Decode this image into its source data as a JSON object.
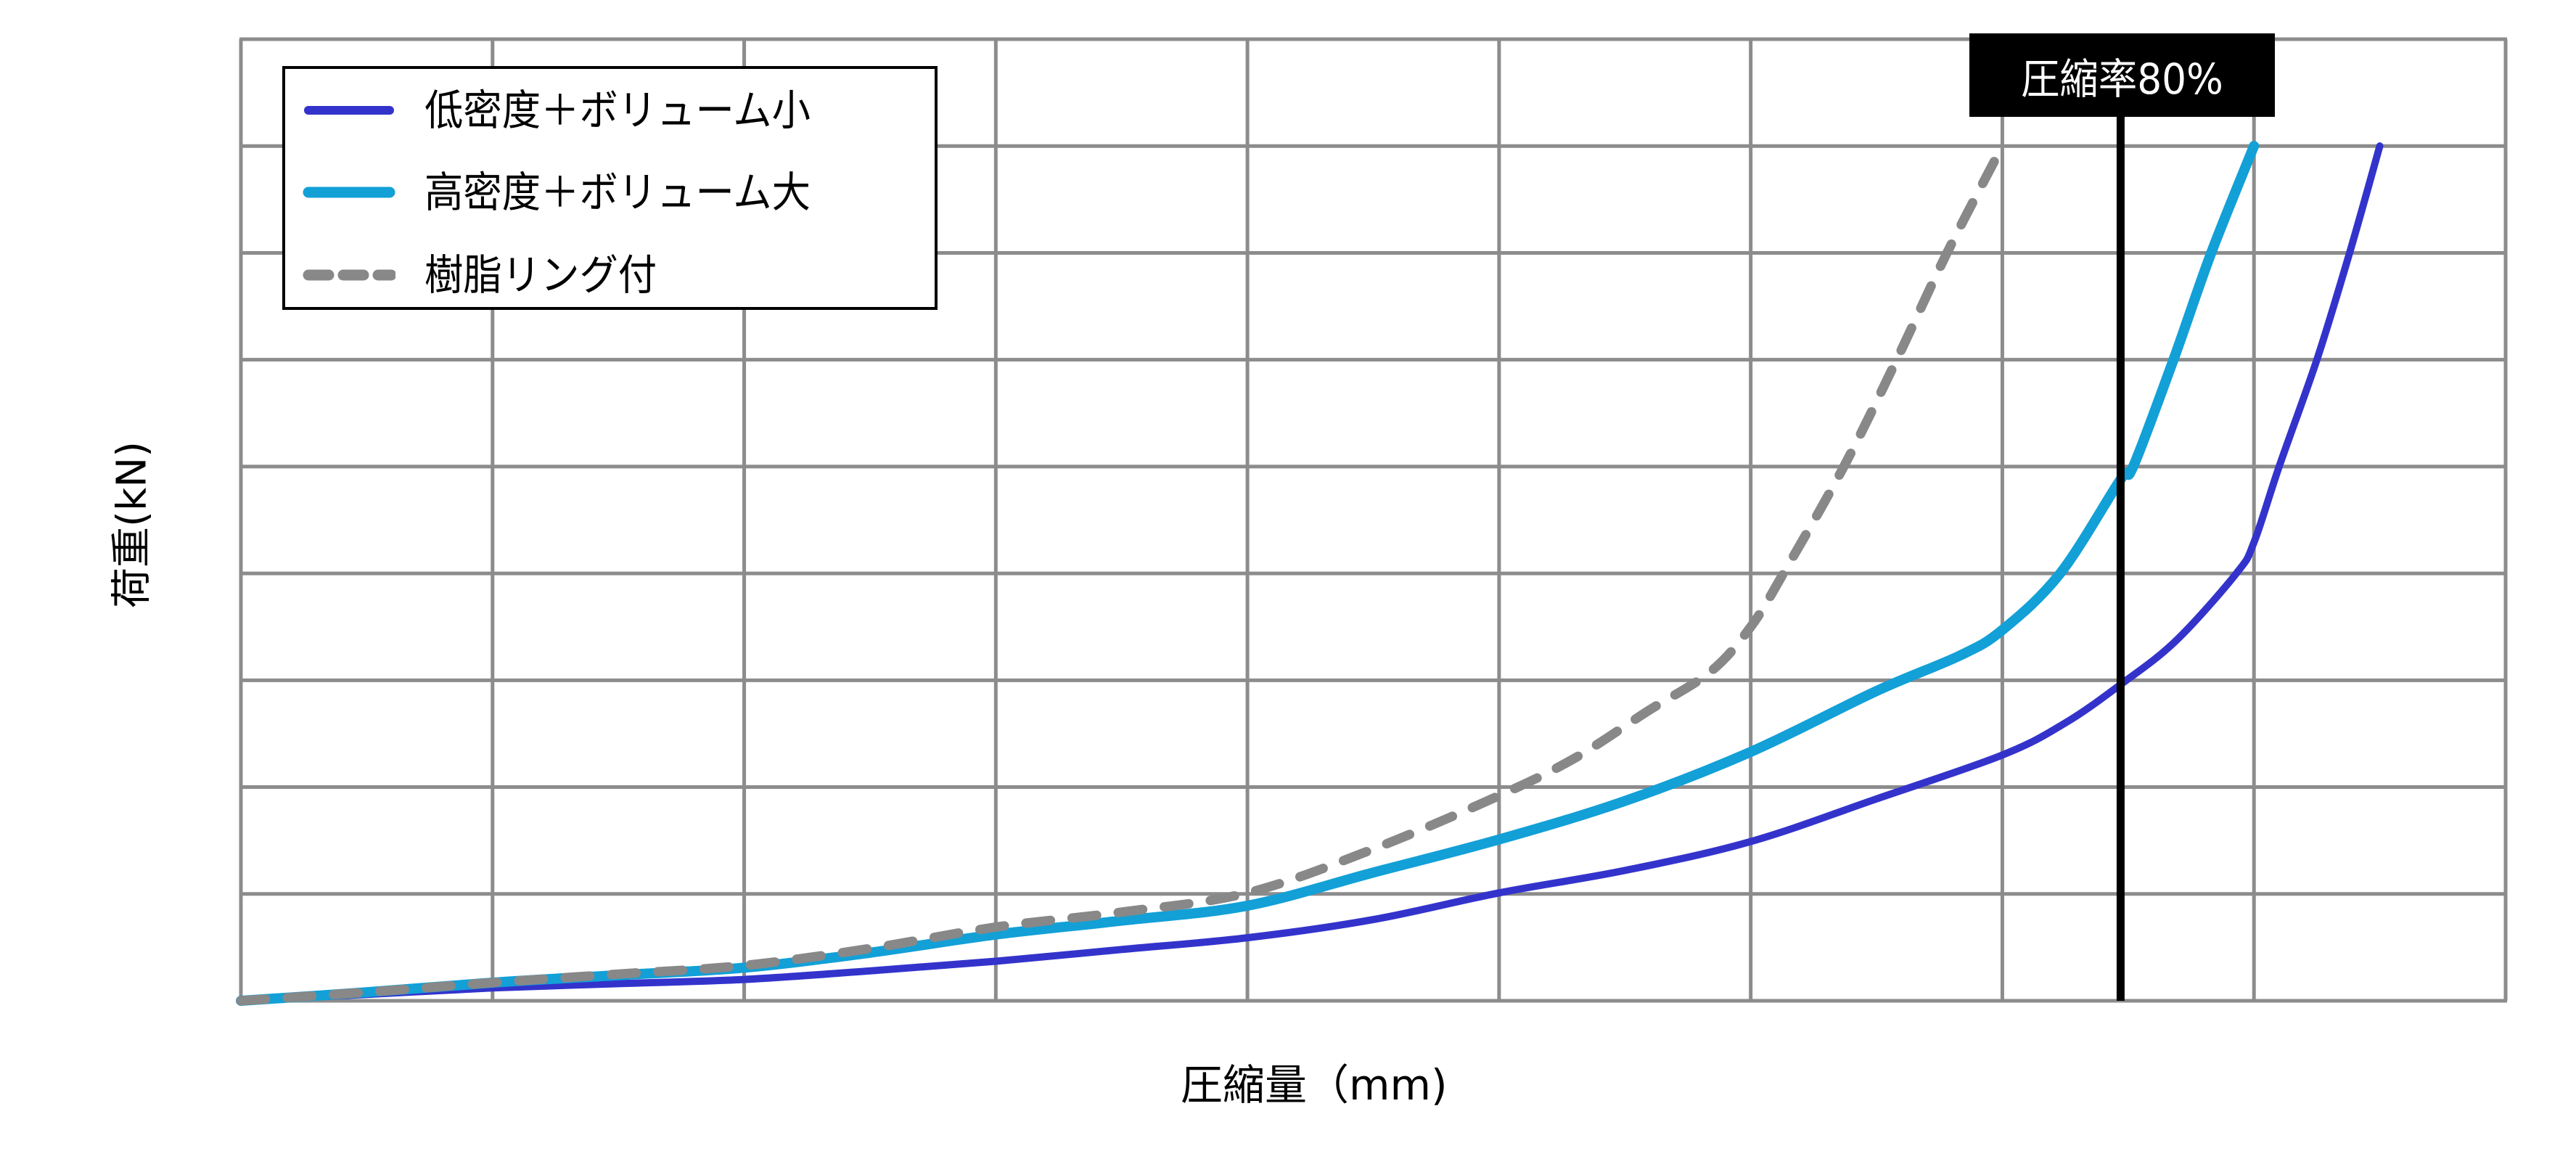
{
  "chart_data": {
    "type": "line",
    "title": "",
    "xlabel": "圧縮量（mm)",
    "ylabel": "荷重(kN)",
    "x_tick_labels": [],
    "y_tick_labels": [],
    "xlim": [
      0,
      9
    ],
    "ylim": [
      0,
      9
    ],
    "grid": true,
    "grid_divisions": {
      "x": 9,
      "y": 9
    },
    "legend_position": "upper left",
    "units_note": "Axes unlabeled; values expressed in grid units (x: columns 0-9, y: rows 0-9)",
    "series": [
      {
        "name": "低密度＋ボリューム小",
        "color": "#3333CC",
        "style": "solid",
        "points": [
          [
            0,
            0
          ],
          [
            0.5,
            0.06
          ],
          [
            1,
            0.12
          ],
          [
            1.5,
            0.16
          ],
          [
            2,
            0.2
          ],
          [
            2.5,
            0.28
          ],
          [
            3,
            0.37
          ],
          [
            3.5,
            0.48
          ],
          [
            4,
            0.59
          ],
          [
            4.5,
            0.76
          ],
          [
            5,
            1.01
          ],
          [
            5.5,
            1.22
          ],
          [
            6,
            1.49
          ],
          [
            6.5,
            1.89
          ],
          [
            7,
            2.3
          ],
          [
            7.25,
            2.6
          ],
          [
            7.47,
            2.96
          ],
          [
            7.69,
            3.37
          ],
          [
            7.93,
            4.0
          ],
          [
            8,
            4.29
          ],
          [
            8.1,
            5.0
          ],
          [
            8.25,
            6.0
          ],
          [
            8.38,
            7.0
          ],
          [
            8.5,
            8.0
          ]
        ]
      },
      {
        "name": "高密度＋ボリューム大",
        "color": "#12A0D7",
        "style": "solid",
        "points": [
          [
            0,
            0
          ],
          [
            0.5,
            0.08
          ],
          [
            1,
            0.17
          ],
          [
            1.5,
            0.24
          ],
          [
            2,
            0.31
          ],
          [
            2.5,
            0.45
          ],
          [
            3,
            0.62
          ],
          [
            3.5,
            0.75
          ],
          [
            4,
            0.89
          ],
          [
            4.5,
            1.2
          ],
          [
            5,
            1.51
          ],
          [
            5.5,
            1.87
          ],
          [
            6,
            2.33
          ],
          [
            6.5,
            2.9
          ],
          [
            6.83,
            3.23
          ],
          [
            7,
            3.47
          ],
          [
            7.23,
            4.0
          ],
          [
            7.47,
            4.88
          ],
          [
            7.52,
            5.0
          ],
          [
            7.68,
            6.0
          ],
          [
            7.83,
            7.0
          ],
          [
            8,
            8.0
          ]
        ]
      },
      {
        "name": "樹脂リング付",
        "color": "#888888",
        "style": "dashed",
        "points": [
          [
            0,
            0
          ],
          [
            0.5,
            0.08
          ],
          [
            1,
            0.17
          ],
          [
            1.5,
            0.25
          ],
          [
            2,
            0.33
          ],
          [
            2.5,
            0.49
          ],
          [
            3,
            0.69
          ],
          [
            3.5,
            0.83
          ],
          [
            4,
            1.01
          ],
          [
            4.5,
            1.42
          ],
          [
            5,
            1.92
          ],
          [
            5.3,
            2.27
          ],
          [
            5.59,
            2.71
          ],
          [
            5.84,
            3.08
          ],
          [
            6,
            3.5
          ],
          [
            6.13,
            4.0
          ],
          [
            6.37,
            5.0
          ],
          [
            6.58,
            6.0
          ],
          [
            6.78,
            7.0
          ],
          [
            7,
            8.0
          ]
        ]
      }
    ],
    "annotations": [
      {
        "type": "vline",
        "x": 7.47,
        "label": "圧縮率80%",
        "color": "#000000"
      }
    ]
  },
  "legend": {
    "items": [
      {
        "label": "低密度＋ボリューム小",
        "color": "#3333CC",
        "style": "solid"
      },
      {
        "label": "高密度＋ボリューム大",
        "color": "#12A0D7",
        "style": "solid"
      },
      {
        "label": "樹脂リング付",
        "color": "#888888",
        "style": "dashed"
      }
    ]
  },
  "annotation": {
    "label": "圧縮率80%"
  },
  "axes": {
    "xlabel": "圧縮量（mm)",
    "ylabel": "荷重(kN)"
  },
  "colors": {
    "grid": "#8C8C8C",
    "vline": "#000000",
    "background": "#FFFFFF"
  }
}
